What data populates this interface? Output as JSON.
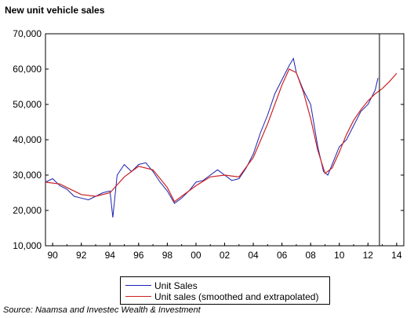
{
  "title": "New unit vehicle sales",
  "source": "Source: Naamsa and Investec Wealth & Investment",
  "colors": {
    "unit_sales": "#1a22b0",
    "smoothed": "#cc2020",
    "axis": "#000000"
  },
  "chart_data": {
    "type": "line",
    "title": "New unit vehicle sales",
    "xlabel": "",
    "ylabel": "",
    "xlim": [
      1989.5,
      2014.5
    ],
    "ylim": [
      10000,
      70000
    ],
    "y_ticks": [
      10000,
      20000,
      30000,
      40000,
      50000,
      60000,
      70000
    ],
    "y_tick_labels": [
      "10,000",
      "20,000",
      "30,000",
      "40,000",
      "50,000",
      "60,000",
      "70,000"
    ],
    "x_ticks": [
      1990,
      1992,
      1994,
      1996,
      1998,
      2000,
      2002,
      2004,
      2006,
      2008,
      2010,
      2012,
      2014
    ],
    "x_tick_labels": [
      "90",
      "92",
      "94",
      "96",
      "98",
      "00",
      "02",
      "04",
      "06",
      "08",
      "10",
      "12",
      "14"
    ],
    "vertical_marker_x": 2012.8,
    "grid": false,
    "legend_position": "bottom",
    "series": [
      {
        "name": "Unit Sales",
        "x": [
          1989.5,
          1990.0,
          1990.5,
          1991.0,
          1991.5,
          1992.0,
          1992.5,
          1993.0,
          1993.5,
          1994.0,
          1994.2,
          1994.5,
          1995.0,
          1995.5,
          1996.0,
          1996.5,
          1997.0,
          1997.5,
          1998.0,
          1998.5,
          1999.0,
          1999.5,
          2000.0,
          2000.5,
          2001.0,
          2001.5,
          2002.0,
          2002.5,
          2003.0,
          2003.5,
          2004.0,
          2004.5,
          2005.0,
          2005.5,
          2006.0,
          2006.5,
          2006.8,
          2007.0,
          2007.5,
          2008.0,
          2008.5,
          2008.9,
          2009.2,
          2009.5,
          2010.0,
          2010.5,
          2011.0,
          2011.5,
          2012.0,
          2012.5,
          2012.7
        ],
        "y": [
          28000,
          29000,
          27000,
          26000,
          24000,
          23500,
          23000,
          24000,
          25000,
          25500,
          18000,
          30000,
          33000,
          31000,
          33000,
          33500,
          31000,
          28000,
          25500,
          22000,
          23500,
          25500,
          28000,
          28500,
          30000,
          31500,
          30000,
          28500,
          29000,
          32000,
          36000,
          42000,
          47000,
          53000,
          57000,
          61000,
          63000,
          59000,
          54000,
          50000,
          38000,
          31000,
          30000,
          33000,
          38000,
          40000,
          44000,
          48000,
          50000,
          54000,
          57500
        ]
      },
      {
        "name": "Unit sales (smoothed and extrapolated)",
        "x": [
          1989.5,
          1990.5,
          1991.5,
          1992.0,
          1993.0,
          1994.0,
          1995.0,
          1996.0,
          1997.0,
          1998.0,
          1998.5,
          1999.0,
          2000.0,
          2001.0,
          2002.0,
          2003.0,
          2004.0,
          2005.0,
          2006.0,
          2006.5,
          2007.0,
          2007.5,
          2008.0,
          2008.5,
          2009.0,
          2009.5,
          2010.0,
          2010.5,
          2011.0,
          2011.5,
          2012.0,
          2012.5,
          2013.0,
          2013.5,
          2014.0
        ],
        "y": [
          28000,
          27500,
          25500,
          24500,
          24000,
          25000,
          29500,
          32500,
          31500,
          26500,
          22500,
          24000,
          27000,
          29500,
          30000,
          29500,
          35000,
          44500,
          55500,
          60000,
          59000,
          53500,
          46000,
          37000,
          30500,
          32000,
          36500,
          41500,
          45500,
          48500,
          51000,
          53000,
          54500,
          56500,
          58800
        ]
      }
    ]
  }
}
